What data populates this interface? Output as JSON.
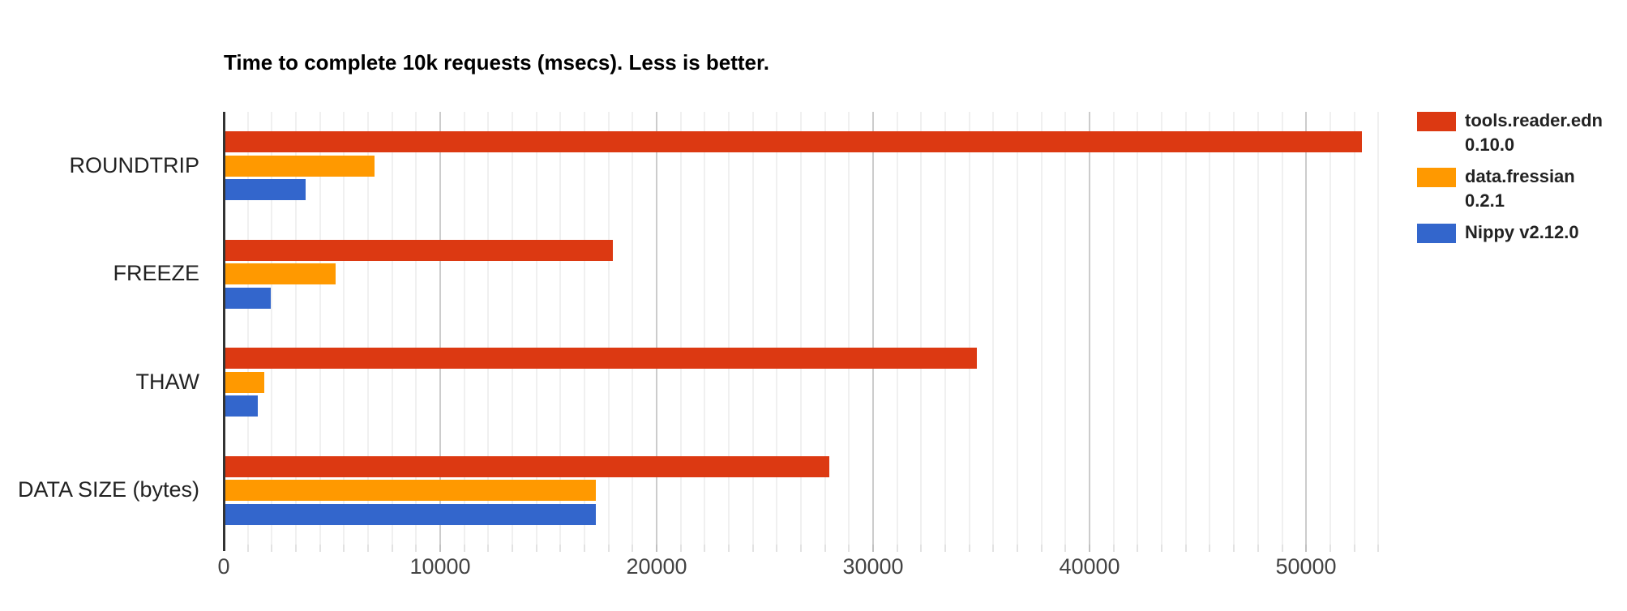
{
  "chart_data": {
    "type": "bar",
    "orientation": "horizontal",
    "title": "Time to complete 10k requests (msecs). Less is better.",
    "categories": [
      "ROUNDTRIP",
      "FREEZE",
      "THAW",
      "DATA SIZE (bytes)"
    ],
    "series": [
      {
        "name": "tools.reader.edn 0.10.0",
        "legend_lines": [
          "tools.reader.edn",
          "0.10.0"
        ],
        "color": "#dc3912",
        "values": [
          52500,
          17900,
          34700,
          27900
        ]
      },
      {
        "name": "data.fressian 0.2.1",
        "legend_lines": [
          "data.fressian",
          "0.2.1"
        ],
        "color": "#ff9900",
        "values": [
          6900,
          5100,
          1800,
          17100
        ]
      },
      {
        "name": "Nippy v2.12.0",
        "legend_lines": [
          "Nippy v2.12.0"
        ],
        "color": "#3366cc",
        "values": [
          3700,
          2100,
          1500,
          17100
        ]
      }
    ],
    "x_axis": {
      "ticks": [
        0,
        10000,
        20000,
        30000,
        40000,
        50000
      ],
      "tick_labels": [
        "0",
        "10000",
        "20000",
        "30000",
        "40000",
        "50000"
      ],
      "min": 0,
      "max": 54300,
      "minor_divisions_per_major": 9
    },
    "ylabel": "",
    "xlabel": "",
    "grid": true,
    "legend_position": "right"
  },
  "colors": {
    "background": "#ffffff",
    "axis_line": "#333333",
    "major_gridline": "#cccccc",
    "minor_gridline": "#f0f0f0",
    "title_text": "#000000",
    "category_text": "#222222",
    "tick_text": "#444444",
    "legend_text": "#222222"
  }
}
